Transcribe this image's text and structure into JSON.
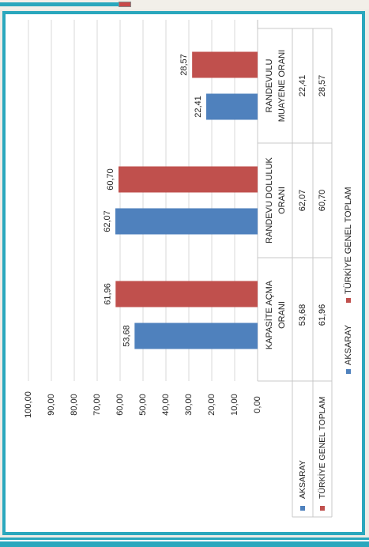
{
  "chart_data": {
    "type": "bar",
    "orientation": "rotated-90",
    "categories": [
      [
        "KAPASİTE AÇMA",
        "ORANI"
      ],
      [
        "RANDEVU DOLULUK",
        "ORANI"
      ],
      [
        "RANDEVULU",
        "MUAYENE ORANI"
      ]
    ],
    "series": [
      {
        "name": "AKSARAY",
        "values": [
          53.68,
          62.07,
          22.41
        ],
        "labels": [
          "53,68",
          "62,07",
          "22,41"
        ],
        "color": "#4f81bd"
      },
      {
        "name": "TÜRKİYE GENEL TOPLAM",
        "values": [
          61.96,
          60.7,
          28.57
        ],
        "labels": [
          "61,96",
          "60,70",
          "28,57"
        ],
        "color": "#c0504d"
      }
    ],
    "yticks": [
      "0,00",
      "10,00",
      "20,00",
      "30,00",
      "40,00",
      "50,00",
      "60,00",
      "70,00",
      "80,00",
      "90,00",
      "100,00"
    ],
    "ylim": [
      0,
      100
    ],
    "grid": true,
    "legend": "bottom",
    "data_table": true
  },
  "colors": {
    "frame": "#2aa7bd",
    "grid": "#d9d9d9"
  }
}
